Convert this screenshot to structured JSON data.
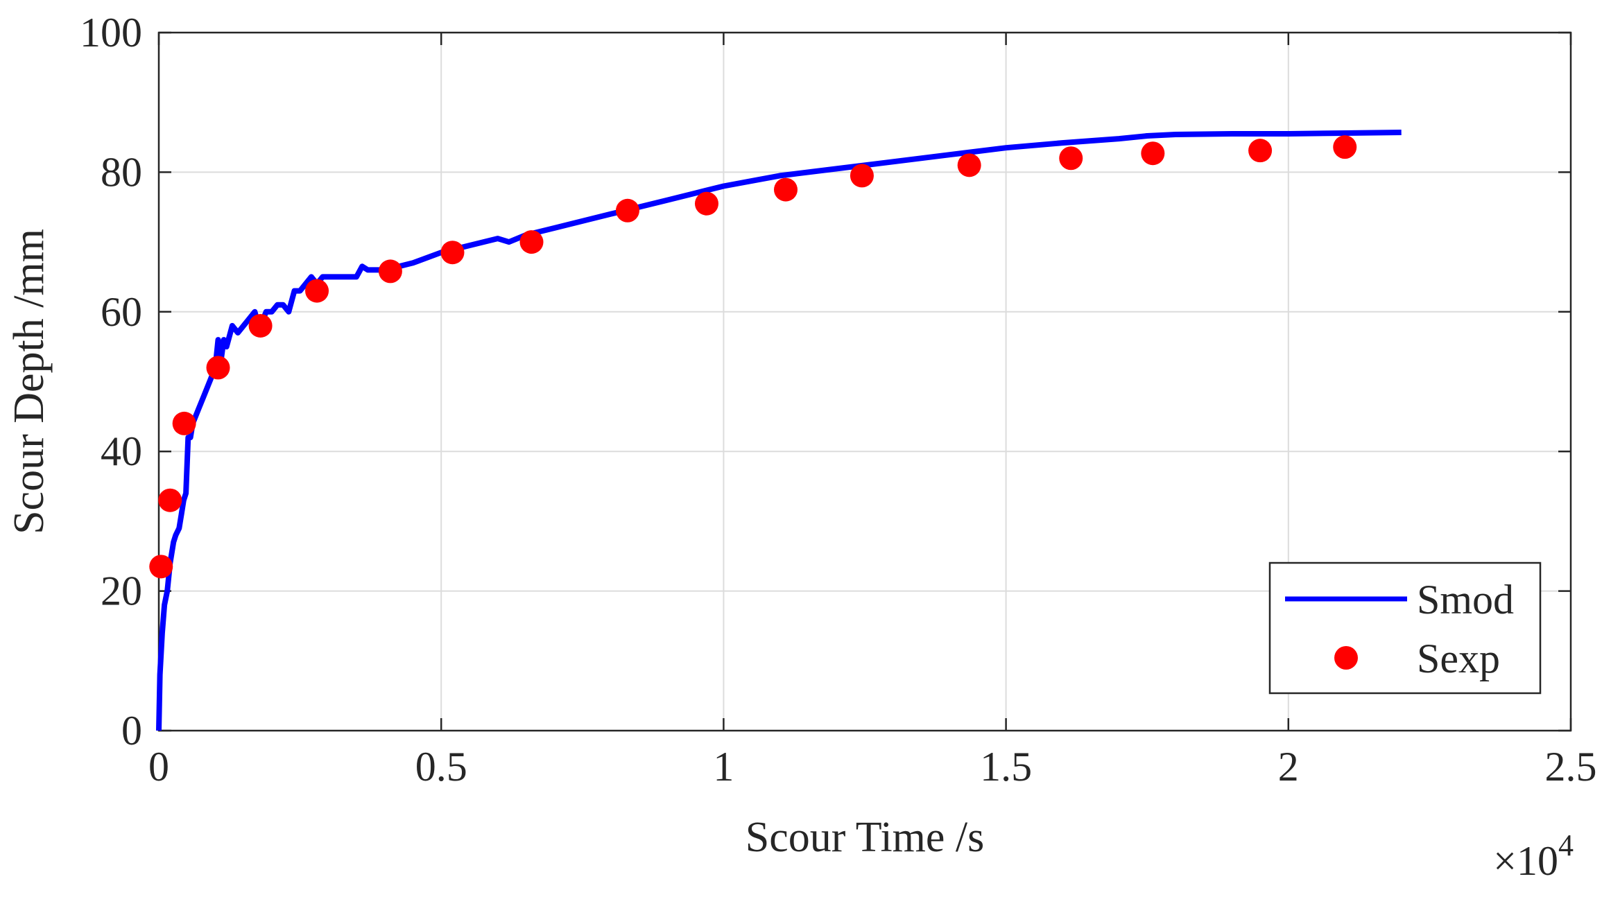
{
  "chart_data": {
    "type": "line",
    "xlabel": "Scour Time /s",
    "ylabel": "Scour Depth /mm",
    "x_multiplier_label": {
      "base": "×10",
      "exponent": "4"
    },
    "xlim": [
      0,
      25000
    ],
    "ylim": [
      0,
      100
    ],
    "x_ticks": [
      0,
      5000,
      10000,
      15000,
      20000,
      25000
    ],
    "x_tick_labels": [
      "0",
      "0.5",
      "1",
      "1.5",
      "2",
      "2.5"
    ],
    "y_ticks": [
      0,
      20,
      40,
      60,
      80,
      100
    ],
    "y_tick_labels": [
      "0",
      "20",
      "40",
      "60",
      "80",
      "100"
    ],
    "grid": true,
    "legend_position": "bottom-right",
    "series": [
      {
        "name": "Smod",
        "kind": "line",
        "color": "#0000ff",
        "x": [
          0,
          20,
          60,
          100,
          150,
          200,
          260,
          300,
          360,
          400,
          440,
          480,
          500,
          520,
          560,
          600,
          700,
          800,
          900,
          1000,
          1050,
          1100,
          1150,
          1200,
          1300,
          1400,
          1500,
          1600,
          1700,
          1800,
          1850,
          1900,
          2000,
          2100,
          2200,
          2300,
          2400,
          2500,
          2600,
          2700,
          2800,
          2900,
          3000,
          3200,
          3500,
          3600,
          3700,
          3900,
          4000,
          4500,
          5000,
          5500,
          6000,
          6200,
          6500,
          7000,
          7500,
          8000,
          8500,
          9000,
          9500,
          10000,
          11000,
          12000,
          13000,
          14000,
          15000,
          16000,
          17000,
          17500,
          18000,
          19000,
          20000,
          21000,
          22000
        ],
        "y": [
          0,
          8,
          14,
          18,
          20,
          24,
          27,
          28,
          29,
          31,
          33,
          34,
          38,
          42,
          42,
          44,
          46,
          48,
          50,
          52,
          56,
          53,
          56,
          55,
          58,
          57,
          58,
          59,
          60,
          57,
          59,
          60,
          60,
          61,
          61,
          60,
          63,
          63,
          64,
          65,
          64,
          65,
          65,
          65,
          65,
          66.5,
          66,
          66,
          66,
          67,
          68.5,
          69.5,
          70.5,
          70,
          71,
          72,
          73,
          74,
          75,
          76,
          77,
          78,
          79.5,
          80.5,
          81.5,
          82.5,
          83.5,
          84.2,
          84.8,
          85.2,
          85.4,
          85.5,
          85.5,
          85.6,
          85.7
        ]
      },
      {
        "name": "Sexp",
        "kind": "scatter",
        "color": "#ff0000",
        "x": [
          40,
          200,
          450,
          1050,
          1800,
          2800,
          4100,
          5200,
          6600,
          8300,
          9700,
          11100,
          12450,
          14350,
          16150,
          17600,
          19500,
          21000
        ],
        "y": [
          23.5,
          33,
          44,
          52,
          58,
          63,
          65.8,
          68.5,
          70,
          74.5,
          75.5,
          77.5,
          79.5,
          81,
          82,
          82.7,
          83.1,
          83.6
        ]
      }
    ]
  }
}
